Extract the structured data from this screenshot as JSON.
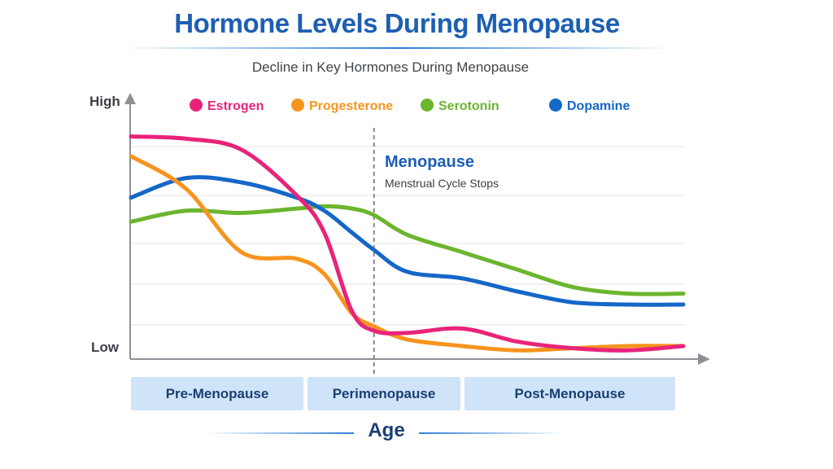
{
  "title": "Hormone Levels During Menopause",
  "subtitle": "Decline in Key Hormones During Menopause",
  "colors": {
    "title": "#1d5fb3",
    "estrogen": "#e8247a",
    "progesterone": "#f7941d",
    "serotonin": "#6cb52f",
    "dopamine": "#1567c8",
    "phase_box": "#cfe4f8"
  },
  "annotation": {
    "title": "Menopause",
    "text": "Menstrual Cycle Stops"
  },
  "phases": [
    "Pre-Menopause",
    "Perimenopause",
    "Post-Menopause"
  ],
  "chart_data": {
    "type": "line",
    "title": "Hormone Levels During Menopause",
    "subtitle": "Decline in Key Hormones During Menopause",
    "xlabel": "Age",
    "ylabel": "",
    "y_tick_labels": [
      "High",
      "Low"
    ],
    "xlim": [
      0,
      100
    ],
    "ylim": [
      0,
      100
    ],
    "grid": true,
    "legend_position": "top",
    "menopause_marker_x": 44,
    "x": [
      0,
      10,
      20,
      30,
      35,
      40,
      44,
      50,
      60,
      70,
      80,
      90,
      100
    ],
    "series": [
      {
        "name": "Estrogen",
        "color": "#e8247a",
        "values": [
          99,
          98,
          93,
          72,
          55,
          19,
          10,
          9,
          11,
          5,
          2,
          1,
          3
        ]
      },
      {
        "name": "Progesterone",
        "color": "#f7941d",
        "values": [
          90,
          75,
          46,
          43,
          36,
          18,
          12,
          6,
          3,
          1,
          2,
          3,
          3
        ]
      },
      {
        "name": "Serotonin",
        "color": "#6cb52f",
        "values": [
          60,
          65,
          64,
          66,
          67,
          66,
          63,
          54,
          46,
          38,
          30,
          27,
          27
        ]
      },
      {
        "name": "Dopamine",
        "color": "#1567c8",
        "values": [
          71,
          80,
          78,
          71,
          65,
          55,
          47,
          37,
          34,
          28,
          23,
          22,
          22
        ]
      }
    ]
  }
}
